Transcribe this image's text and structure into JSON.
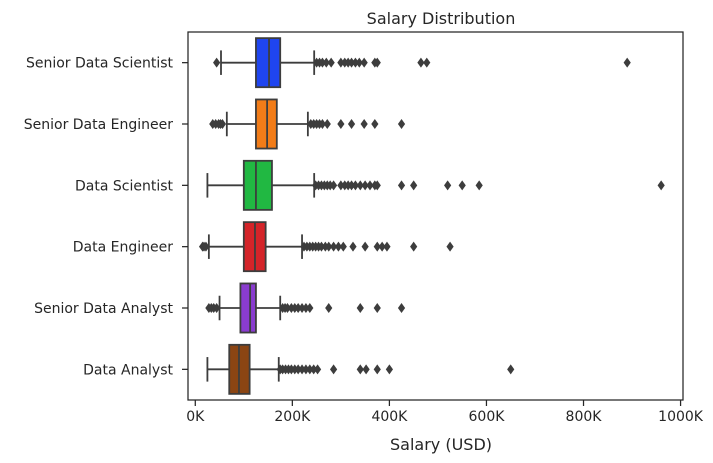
{
  "chart_data": {
    "type": "box",
    "title": "Salary Distribution",
    "xlabel": "Salary (USD)",
    "ylabel": "",
    "xlim": [
      -15000,
      1005000
    ],
    "xticks": [
      0,
      200000,
      400000,
      600000,
      800000,
      1000000
    ],
    "xtick_labels": [
      "0K",
      "200K",
      "400K",
      "600K",
      "800K",
      "1000K"
    ],
    "grid": false,
    "categories": [
      "Senior Data Scientist",
      "Senior Data Engineer",
      "Data Scientist",
      "Data Engineer",
      "Senior Data Analyst",
      "Data Analyst"
    ],
    "series": [
      {
        "category": "Senior Data Scientist",
        "color": "#1f45f0",
        "whisker_low": 53000,
        "q1": 125000,
        "median": 152000,
        "q3": 175000,
        "whisker_high": 245000,
        "outliers": [
          44000,
          250000,
          256000,
          262000,
          270000,
          280000,
          300000,
          308000,
          315000,
          322000,
          330000,
          338000,
          348000,
          370000,
          375000,
          465000,
          477000,
          890000
        ]
      },
      {
        "category": "Senior Data Engineer",
        "color": "#f27c18",
        "whisker_low": 65000,
        "q1": 125000,
        "median": 148000,
        "q3": 168000,
        "whisker_high": 232000,
        "outliers": [
          36000,
          42000,
          48000,
          52000,
          56000,
          238000,
          244000,
          250000,
          256000,
          262000,
          272000,
          300000,
          322000,
          348000,
          370000,
          425000
        ]
      },
      {
        "category": "Data Scientist",
        "color": "#21b842",
        "whisker_low": 25000,
        "q1": 100000,
        "median": 125000,
        "q3": 158000,
        "whisker_high": 245000,
        "outliers": [
          248000,
          254000,
          260000,
          266000,
          272000,
          278000,
          285000,
          300000,
          308000,
          315000,
          322000,
          330000,
          340000,
          350000,
          360000,
          370000,
          375000,
          425000,
          450000,
          520000,
          550000,
          585000,
          960000
        ]
      },
      {
        "category": "Data Engineer",
        "color": "#d42429",
        "whisker_low": 28000,
        "q1": 100000,
        "median": 123000,
        "q3": 145000,
        "whisker_high": 220000,
        "outliers": [
          15000,
          18000,
          22000,
          224000,
          230000,
          236000,
          242000,
          248000,
          254000,
          260000,
          268000,
          275000,
          285000,
          295000,
          305000,
          325000,
          350000,
          375000,
          385000,
          395000,
          450000,
          525000
        ]
      },
      {
        "category": "Senior Data Analyst",
        "color": "#8a3ccf",
        "whisker_low": 50000,
        "q1": 93000,
        "median": 113000,
        "q3": 125000,
        "whisker_high": 175000,
        "outliers": [
          28000,
          33000,
          38000,
          44000,
          180000,
          185000,
          190000,
          198000,
          205000,
          212000,
          220000,
          228000,
          236000,
          275000,
          340000,
          375000,
          425000
        ]
      },
      {
        "category": "Data Analyst",
        "color": "#8b4513",
        "whisker_low": 25000,
        "q1": 70000,
        "median": 90000,
        "q3": 112000,
        "whisker_high": 172000,
        "outliers": [
          175000,
          180000,
          186000,
          192000,
          198000,
          205000,
          212000,
          220000,
          228000,
          236000,
          244000,
          252000,
          285000,
          340000,
          352000,
          375000,
          400000,
          650000
        ]
      }
    ]
  }
}
